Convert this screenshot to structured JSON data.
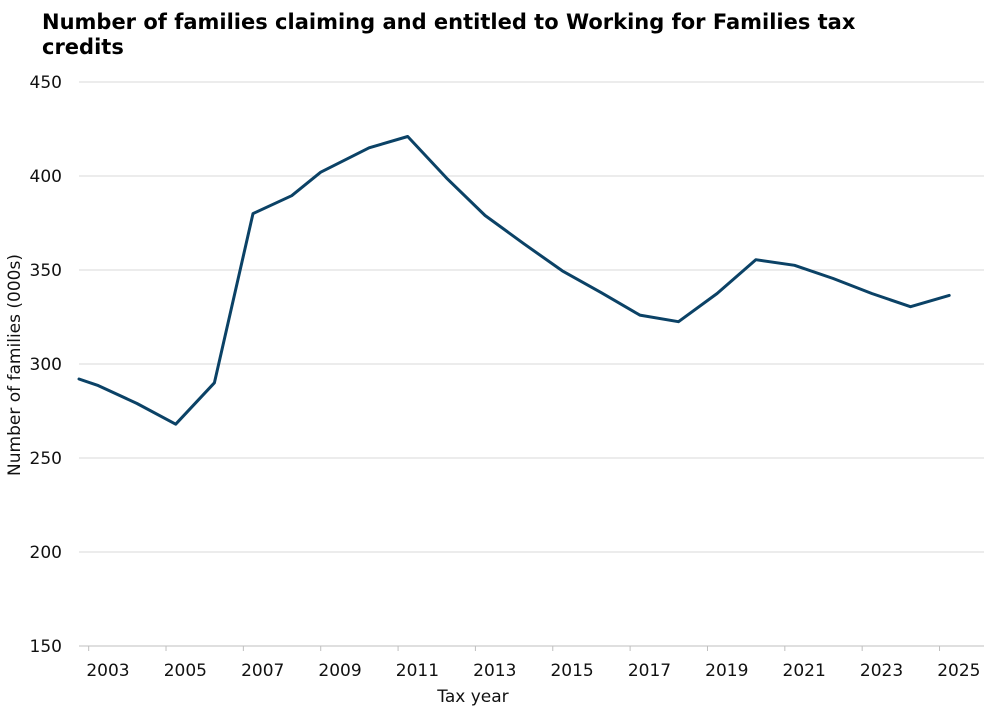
{
  "chart_data": {
    "type": "line",
    "title": "Number of families claiming and entitled to Working for Families tax credits",
    "xlabel": "Tax year",
    "ylabel": "Number of families (000s)",
    "xlim": [
      2002.25,
      2025.65
    ],
    "ylim": [
      150,
      450
    ],
    "yticks": [
      150,
      200,
      250,
      300,
      350,
      400,
      450
    ],
    "xticks": [
      2003,
      2005,
      2007,
      2009,
      2011,
      2013,
      2015,
      2017,
      2019,
      2021,
      2023,
      2025
    ],
    "grid": "horizontal",
    "colors": {
      "line": "#0b4266",
      "grid": "#d9d9d9"
    },
    "series": [
      {
        "x": [
          2002.25,
          2002.75,
          2003.75,
          2004.75,
          2005.75,
          2006.75,
          2007.75,
          2008.5,
          2009.75,
          2010.75,
          2011.75,
          2012.75,
          2013.75,
          2014.75,
          2015.75,
          2016.75,
          2017.75,
          2018.75,
          2019.75,
          2020.75,
          2021.75,
          2022.75,
          2023.75,
          2024.75
        ],
        "y": [
          292,
          288.5,
          279,
          268,
          290,
          380,
          389.5,
          402,
          415,
          421,
          399,
          379,
          364,
          349.5,
          338,
          326,
          322.5,
          337.5,
          355.5,
          352.5,
          345.5,
          337.5,
          330.5,
          336.5
        ]
      }
    ]
  }
}
